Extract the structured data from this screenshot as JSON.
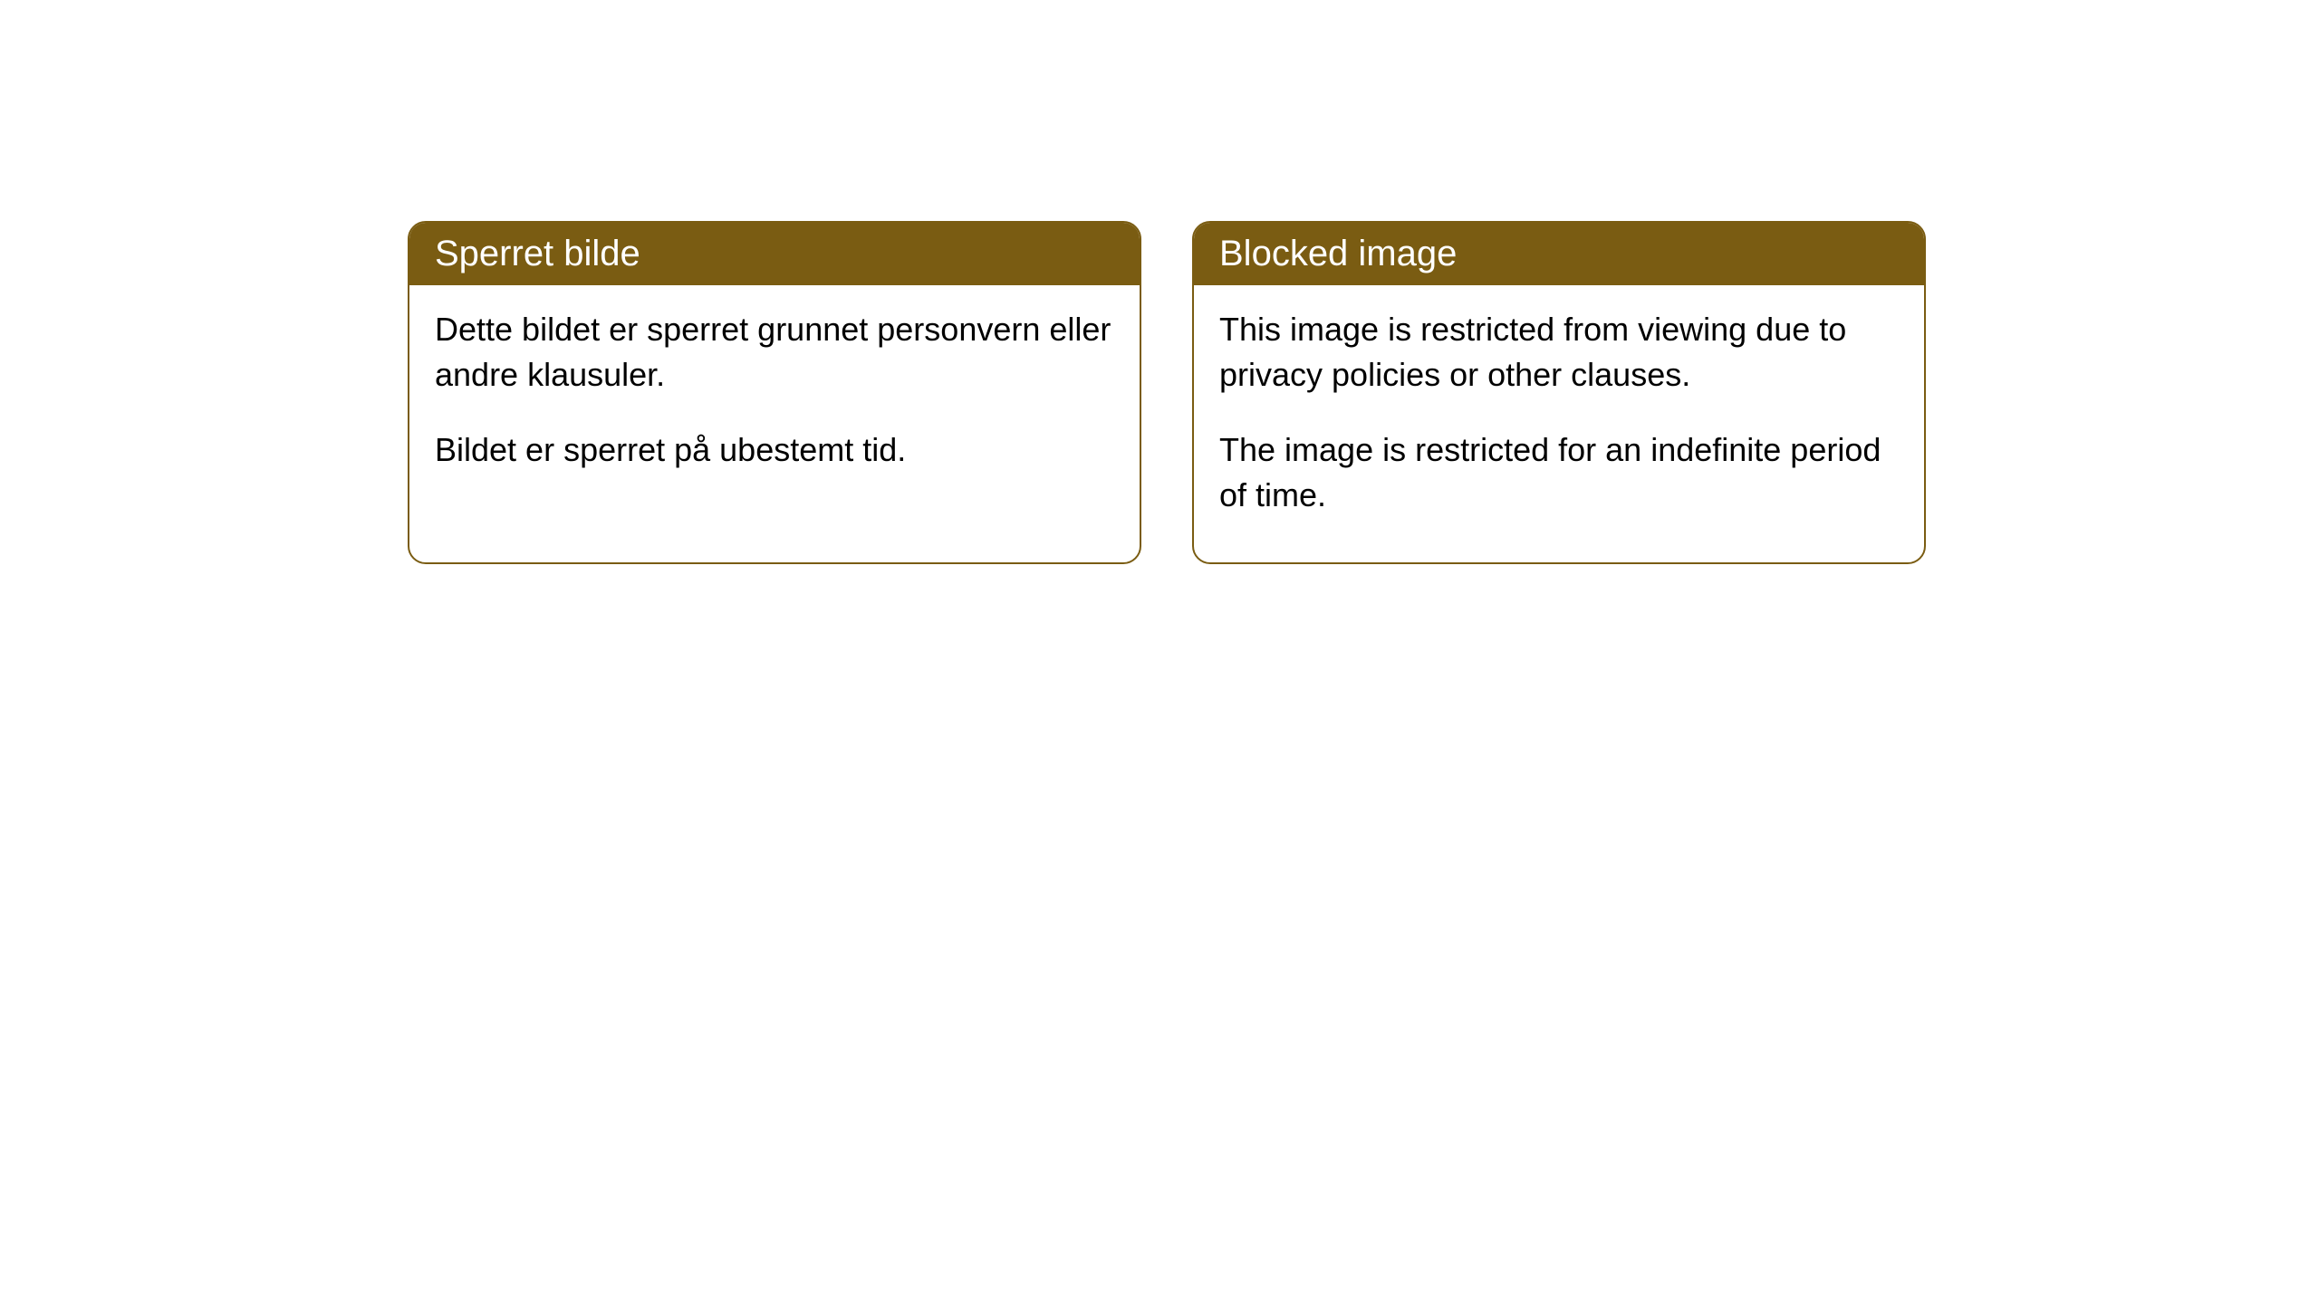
{
  "cards": [
    {
      "title": "Sperret bilde",
      "paragraph1": "Dette bildet er sperret grunnet personvern eller andre klausuler.",
      "paragraph2": "Bildet er sperret på ubestemt tid."
    },
    {
      "title": "Blocked image",
      "paragraph1": "This image is restricted from viewing due to privacy policies or other clauses.",
      "paragraph2": "The image is restricted for an indefinite period of time."
    }
  ],
  "style": {
    "header_background": "#7a5c12",
    "header_text_color": "#ffffff",
    "body_background": "#ffffff",
    "body_text_color": "#000000",
    "border_color": "#7a5c12",
    "border_radius": 20,
    "header_fontsize": 40,
    "body_fontsize": 36
  }
}
